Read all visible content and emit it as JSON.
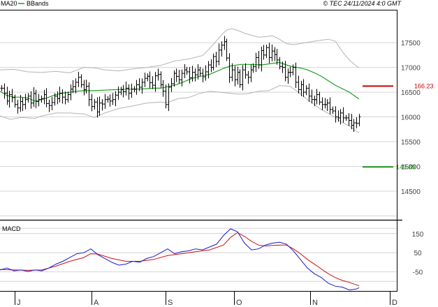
{
  "header": {
    "ma_label": "MA20",
    "bands_label": "BBands",
    "copyright": "© TEC 24/11/2024 4:0 GMT"
  },
  "colors": {
    "ma": "#1f9e1f",
    "bands": "#b4b4b4",
    "price": "#000000",
    "resistance": "#cc0000",
    "support": "#1a9a1a",
    "macd": "#1a1acc",
    "signal": "#cc1111",
    "grid": "#d4d4d4",
    "frame": "#000000"
  },
  "chart_data": [
    {
      "type": "ohlc",
      "title": "",
      "x_tick_labels": [
        "J",
        "A",
        "S",
        "O",
        "N",
        "D"
      ],
      "y_tick_labels": [
        "17500",
        "17000",
        "16500",
        "16000",
        "15500",
        "15000",
        "14500"
      ],
      "y_range": [
        13950,
        18150
      ],
      "grid": true,
      "series": [
        {
          "name": "MA20",
          "type": "line",
          "points": [
            [
              0,
              16520
            ],
            [
              10,
              16430
            ],
            [
              20,
              16400
            ],
            [
              30,
              16400
            ],
            [
              40,
              16380
            ],
            [
              50,
              16320
            ],
            [
              60,
              16350
            ],
            [
              70,
              16400
            ],
            [
              80,
              16450
            ],
            [
              90,
              16480
            ],
            [
              100,
              16500
            ],
            [
              110,
              16520
            ],
            [
              120,
              16530
            ],
            [
              135,
              16530
            ],
            [
              150,
              16540
            ],
            [
              165,
              16550
            ],
            [
              180,
              16560
            ],
            [
              195,
              16560
            ],
            [
              210,
              16570
            ],
            [
              220,
              16580
            ],
            [
              230,
              16580
            ],
            [
              240,
              16610
            ],
            [
              250,
              16640
            ],
            [
              260,
              16690
            ],
            [
              270,
              16750
            ],
            [
              280,
              16800
            ],
            [
              290,
              16830
            ],
            [
              300,
              16860
            ],
            [
              310,
              16920
            ],
            [
              320,
              16980
            ],
            [
              330,
              17030
            ],
            [
              345,
              17060
            ],
            [
              360,
              17060
            ],
            [
              375,
              17050
            ],
            [
              390,
              17080
            ],
            [
              400,
              17100
            ],
            [
              410,
              17050
            ],
            [
              420,
              17010
            ],
            [
              430,
              16990
            ],
            [
              440,
              16950
            ],
            [
              450,
              16890
            ],
            [
              460,
              16820
            ],
            [
              470,
              16730
            ],
            [
              480,
              16640
            ],
            [
              490,
              16570
            ],
            [
              500,
              16500
            ],
            [
              505,
              16450
            ],
            [
              514,
              16360
            ]
          ]
        },
        {
          "name": "BBands",
          "type": "band",
          "upper": [
            [
              0,
              16950
            ],
            [
              20,
              16960
            ],
            [
              40,
              16910
            ],
            [
              60,
              16900
            ],
            [
              80,
              16920
            ],
            [
              100,
              16890
            ],
            [
              120,
              17000
            ],
            [
              135,
              16990
            ],
            [
              150,
              16950
            ],
            [
              170,
              16930
            ],
            [
              190,
              16970
            ],
            [
              210,
              17000
            ],
            [
              230,
              17040
            ],
            [
              250,
              17130
            ],
            [
              270,
              17170
            ],
            [
              290,
              17240
            ],
            [
              300,
              17380
            ],
            [
              310,
              17540
            ],
            [
              318,
              17670
            ],
            [
              325,
              17760
            ],
            [
              332,
              17780
            ],
            [
              340,
              17750
            ],
            [
              350,
              17690
            ],
            [
              360,
              17650
            ],
            [
              370,
              17610
            ],
            [
              380,
              17620
            ],
            [
              390,
              17640
            ],
            [
              400,
              17570
            ],
            [
              410,
              17480
            ],
            [
              420,
              17460
            ],
            [
              430,
              17480
            ],
            [
              450,
              17530
            ],
            [
              470,
              17570
            ],
            [
              480,
              17530
            ],
            [
              490,
              17320
            ],
            [
              500,
              17150
            ],
            [
              510,
              17030
            ],
            [
              514,
              16990
            ]
          ],
          "lower": [
            [
              0,
              16020
            ],
            [
              15,
              15950
            ],
            [
              30,
              15990
            ],
            [
              50,
              15970
            ],
            [
              60,
              16020
            ],
            [
              80,
              16080
            ],
            [
              100,
              16080
            ],
            [
              120,
              16060
            ],
            [
              135,
              15990
            ],
            [
              150,
              16080
            ],
            [
              170,
              16170
            ],
            [
              190,
              16220
            ],
            [
              210,
              16280
            ],
            [
              230,
              16300
            ],
            [
              240,
              16290
            ],
            [
              255,
              16370
            ],
            [
              270,
              16390
            ],
            [
              285,
              16470
            ],
            [
              300,
              16520
            ],
            [
              320,
              16490
            ],
            [
              340,
              16460
            ],
            [
              345,
              16460
            ],
            [
              355,
              16470
            ],
            [
              370,
              16520
            ],
            [
              385,
              16530
            ],
            [
              400,
              16630
            ],
            [
              415,
              16620
            ],
            [
              430,
              16470
            ],
            [
              440,
              16350
            ],
            [
              450,
              16250
            ],
            [
              460,
              16150
            ],
            [
              470,
              16070
            ],
            [
              480,
              15990
            ],
            [
              490,
              15890
            ],
            [
              500,
              15820
            ],
            [
              510,
              15710
            ],
            [
              514,
              15680
            ]
          ]
        },
        {
          "name": "Price",
          "type": "ohlc_ticks",
          "close": [
            16580,
            16480,
            16320,
            16450,
            16390,
            16250,
            16180,
            16310,
            16250,
            16350,
            16420,
            16280,
            16470,
            16310,
            16350,
            16370,
            16450,
            16270,
            16230,
            16290,
            16420,
            16370,
            16480,
            16400,
            16350,
            16450,
            16560,
            16610,
            16700,
            16800,
            16650,
            16550,
            16620,
            16350,
            16210,
            16300,
            16100,
            16280,
            16260,
            16350,
            16360,
            16320,
            16350,
            16440,
            16500,
            16550,
            16510,
            16580,
            16480,
            16560,
            16560,
            16650,
            16600,
            16700,
            16780,
            16820,
            16690,
            16640,
            16830,
            16860,
            16650,
            16520,
            16250,
            16600,
            16670,
            16880,
            16820,
            16750,
            16880,
            16950,
            16910,
            16790,
            16900,
            16850,
            16950,
            16880,
            16810,
            16910,
            17050,
            17000,
            17220,
            17120,
            17350,
            17450,
            17520,
            17190,
            16800,
            16950,
            16750,
            16900,
            16650,
            16950,
            16850,
            16800,
            16950,
            17020,
            17200,
            17050,
            17340,
            17250,
            17400,
            17200,
            17330,
            17260,
            17150,
            17020,
            17000,
            16800,
            16900,
            16900,
            17000,
            16700,
            16550,
            16650,
            16500,
            16580,
            16420,
            16350,
            16350,
            16450,
            16300,
            16250,
            16250,
            16280,
            16150,
            16120,
            16000,
            15980,
            16080,
            15980,
            15980,
            15930,
            15830,
            15880,
            15870,
            16000
          ]
        },
        {
          "name": "Resistance",
          "type": "hline",
          "value": 16623,
          "label": "166.23"
        },
        {
          "name": "Support",
          "type": "hline",
          "value": 14989,
          "label": "149.89"
        }
      ]
    },
    {
      "type": "line",
      "title": "MACD",
      "y_tick_labels": [
        "150",
        "50",
        "-50"
      ],
      "y_range": [
        -150,
        215
      ],
      "series": [
        {
          "name": "MACD",
          "points": [
            [
              0,
              -40
            ],
            [
              10,
              -30
            ],
            [
              20,
              -45
            ],
            [
              30,
              -40
            ],
            [
              40,
              -48
            ],
            [
              50,
              -40
            ],
            [
              60,
              -45
            ],
            [
              70,
              -30
            ],
            [
              80,
              -10
            ],
            [
              90,
              5
            ],
            [
              100,
              25
            ],
            [
              110,
              45
            ],
            [
              120,
              50
            ],
            [
              130,
              70
            ],
            [
              140,
              40
            ],
            [
              150,
              20
            ],
            [
              160,
              0
            ],
            [
              170,
              -15
            ],
            [
              180,
              -10
            ],
            [
              190,
              5
            ],
            [
              200,
              0
            ],
            [
              210,
              20
            ],
            [
              220,
              30
            ],
            [
              230,
              50
            ],
            [
              240,
              70
            ],
            [
              250,
              45
            ],
            [
              260,
              55
            ],
            [
              270,
              60
            ],
            [
              280,
              70
            ],
            [
              290,
              65
            ],
            [
              300,
              80
            ],
            [
              310,
              95
            ],
            [
              320,
              140
            ],
            [
              330,
              175
            ],
            [
              340,
              160
            ],
            [
              350,
              100
            ],
            [
              360,
              65
            ],
            [
              370,
              70
            ],
            [
              380,
              90
            ],
            [
              390,
              100
            ],
            [
              400,
              105
            ],
            [
              410,
              95
            ],
            [
              420,
              60
            ],
            [
              430,
              15
            ],
            [
              440,
              -30
            ],
            [
              450,
              -60
            ],
            [
              460,
              -80
            ],
            [
              470,
              -110
            ],
            [
              480,
              -125
            ],
            [
              490,
              -130
            ],
            [
              500,
              -145
            ],
            [
              510,
              -140
            ],
            [
              514,
              -133
            ]
          ]
        },
        {
          "name": "Signal",
          "points": [
            [
              0,
              -38
            ],
            [
              20,
              -40
            ],
            [
              40,
              -42
            ],
            [
              60,
              -40
            ],
            [
              80,
              -20
            ],
            [
              100,
              5
            ],
            [
              120,
              25
            ],
            [
              130,
              45
            ],
            [
              140,
              43
            ],
            [
              160,
              20
            ],
            [
              180,
              5
            ],
            [
              200,
              5
            ],
            [
              220,
              15
            ],
            [
              240,
              35
            ],
            [
              250,
              40
            ],
            [
              260,
              45
            ],
            [
              280,
              55
            ],
            [
              300,
              65
            ],
            [
              320,
              90
            ],
            [
              330,
              130
            ],
            [
              340,
              155
            ],
            [
              350,
              135
            ],
            [
              360,
              110
            ],
            [
              370,
              90
            ],
            [
              380,
              85
            ],
            [
              390,
              88
            ],
            [
              400,
              90
            ],
            [
              410,
              90
            ],
            [
              420,
              70
            ],
            [
              430,
              45
            ],
            [
              440,
              15
            ],
            [
              450,
              -10
            ],
            [
              460,
              -35
            ],
            [
              470,
              -60
            ],
            [
              480,
              -80
            ],
            [
              490,
              -95
            ],
            [
              500,
              -105
            ],
            [
              510,
              -118
            ],
            [
              514,
              -123
            ]
          ]
        }
      ]
    }
  ]
}
